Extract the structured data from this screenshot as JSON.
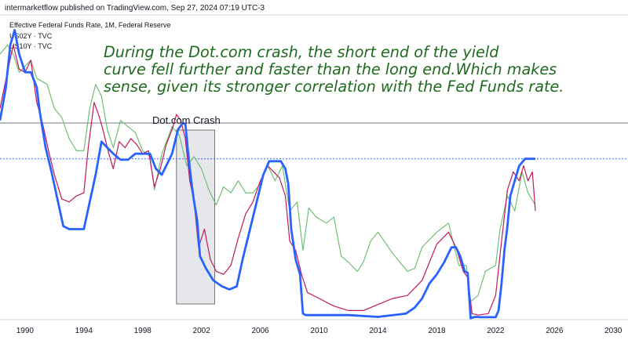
{
  "header": "intermarketflow published on TradingView.com, Sep 27, 2024 07:19 UTC-3",
  "legend": [
    "Effective Federal Funds Rate, 1M, Federal Reserve",
    "US02Y · TVC",
    "US10Y · TVC"
  ],
  "annotation": [
    "During the Dot.com crash, the short end of the yield",
    "curve fell further and faster than the long end.Which makes",
    "sense, given its stronger correlation with the Fed Funds rate."
  ],
  "box_label": "Dot.com Crash",
  "colors": {
    "fed_funds": "#2962ff",
    "us02y": "#c2185b",
    "us10y": "#66bb6a",
    "box_fill": "#e6e7ea",
    "dotted": "#2962ff"
  },
  "chart_data": {
    "type": "line",
    "title": "",
    "xlabel": "",
    "ylabel": "",
    "xlim": [
      1988.3,
      2031.0
    ],
    "ylim": [
      0.0,
      10.1
    ],
    "x_ticks": [
      1990,
      1994,
      1998,
      2002,
      2006,
      2010,
      2014,
      2018,
      2022,
      2026,
      2030
    ],
    "grid": false,
    "shaded_region": {
      "label": "Dot.com Crash",
      "x_start": 2000.3,
      "x_end": 2002.9
    },
    "reference_lines": [
      {
        "type": "dotted",
        "y": 5.33
      }
    ],
    "series": [
      {
        "name": "Effective Federal Funds Rate, 1M, Federal Reserve",
        "x": [
          1988.3,
          1988.7,
          1989.0,
          1989.3,
          1989.6,
          1990.0,
          1990.4,
          1990.8,
          1991.0,
          1991.4,
          1991.8,
          1992.2,
          1992.6,
          1993.0,
          1993.5,
          1994.0,
          1994.4,
          1994.8,
          1995.2,
          1995.6,
          1996.0,
          1996.5,
          1997.0,
          1997.5,
          1998.0,
          1998.5,
          1998.9,
          1999.3,
          1999.7,
          2000.0,
          2000.4,
          2000.7,
          2000.9,
          2001.1,
          2001.3,
          2001.5,
          2001.7,
          2001.9,
          2002.3,
          2002.8,
          2003.4,
          2003.9,
          2004.4,
          2004.8,
          2005.3,
          2005.8,
          2006.2,
          2006.6,
          2007.0,
          2007.4,
          2007.7,
          2007.9,
          2008.1,
          2008.4,
          2008.7,
          2008.9,
          2009.1,
          2010.0,
          2012.0,
          2014.0,
          2015.9,
          2016.5,
          2017.0,
          2017.5,
          2018.0,
          2018.5,
          2019.0,
          2019.3,
          2019.6,
          2019.9,
          2020.1,
          2020.3,
          2020.6,
          2021.0,
          2021.5,
          2022.0,
          2022.2,
          2022.4,
          2022.6,
          2022.8,
          2023.0,
          2023.3,
          2023.6,
          2024.0,
          2024.4,
          2024.7
        ],
        "values": [
          6.6,
          7.7,
          9.1,
          9.6,
          8.8,
          8.2,
          8.2,
          7.7,
          6.9,
          5.7,
          4.9,
          4.0,
          3.1,
          3.0,
          3.0,
          3.0,
          3.9,
          4.8,
          5.9,
          5.7,
          5.5,
          5.3,
          5.3,
          5.5,
          5.5,
          5.5,
          5.0,
          4.8,
          5.2,
          5.5,
          6.3,
          6.5,
          6.5,
          5.5,
          4.6,
          3.9,
          3.3,
          2.1,
          1.7,
          1.3,
          1.1,
          1.0,
          1.1,
          2.0,
          3.0,
          4.0,
          4.8,
          5.25,
          5.25,
          5.25,
          5.0,
          4.5,
          3.0,
          2.0,
          1.5,
          0.2,
          0.15,
          0.15,
          0.15,
          0.09,
          0.2,
          0.4,
          0.7,
          1.2,
          1.5,
          1.9,
          2.4,
          2.4,
          2.1,
          1.6,
          1.55,
          0.05,
          0.09,
          0.08,
          0.08,
          0.08,
          0.3,
          1.2,
          2.3,
          3.1,
          4.1,
          4.6,
          5.1,
          5.33,
          5.33,
          5.33
        ]
      },
      {
        "name": "US02Y · TVC",
        "x": [
          1988.3,
          1988.8,
          1989.2,
          1989.6,
          1990.0,
          1990.4,
          1990.8,
          1991.2,
          1991.6,
          1992.0,
          1992.5,
          1993.0,
          1993.5,
          1994.0,
          1994.3,
          1994.7,
          1995.0,
          1995.3,
          1995.7,
          1996.0,
          1996.4,
          1996.8,
          1997.2,
          1997.6,
          1998.0,
          1998.4,
          1998.8,
          1999.2,
          1999.6,
          2000.0,
          2000.3,
          2000.6,
          2000.9,
          2001.2,
          2001.5,
          2001.8,
          2002.2,
          2002.6,
          2003.0,
          2003.5,
          2004.0,
          2004.5,
          2005.0,
          2005.5,
          2006.0,
          2006.5,
          2006.9,
          2007.3,
          2007.7,
          2008.0,
          2008.4,
          2008.8,
          2009.2,
          2010.0,
          2011.0,
          2012.0,
          2013.0,
          2014.0,
          2015.0,
          2016.0,
          2017.0,
          2018.0,
          2018.8,
          2019.3,
          2019.8,
          2020.1,
          2020.4,
          2020.8,
          2021.5,
          2022.0,
          2022.4,
          2022.8,
          2023.2,
          2023.6,
          2023.9,
          2024.2,
          2024.5,
          2024.7
        ],
        "values": [
          7.0,
          8.2,
          9.1,
          8.3,
          8.2,
          8.6,
          7.2,
          6.5,
          5.6,
          4.8,
          4.0,
          3.9,
          4.1,
          4.2,
          5.7,
          7.2,
          6.8,
          6.3,
          5.5,
          5.0,
          5.9,
          5.7,
          6.0,
          5.8,
          5.5,
          5.6,
          4.4,
          5.0,
          5.8,
          6.3,
          6.8,
          6.6,
          6.0,
          4.6,
          3.9,
          2.4,
          3.0,
          2.0,
          1.6,
          1.5,
          1.8,
          2.7,
          3.5,
          3.9,
          4.6,
          5.1,
          4.9,
          4.7,
          4.1,
          2.6,
          2.3,
          1.5,
          0.9,
          0.7,
          0.45,
          0.3,
          0.3,
          0.5,
          0.7,
          0.8,
          1.3,
          2.5,
          2.9,
          2.4,
          1.6,
          1.4,
          0.2,
          0.15,
          0.2,
          0.8,
          2.6,
          4.3,
          4.9,
          4.6,
          5.1,
          4.6,
          4.9,
          3.6
        ]
      },
      {
        "name": "US10Y · TVC",
        "x": [
          1988.3,
          1988.8,
          1989.2,
          1989.6,
          1990.0,
          1990.4,
          1990.8,
          1991.5,
          1992.0,
          1992.5,
          1993.0,
          1993.5,
          1994.0,
          1994.4,
          1994.8,
          1995.2,
          1995.6,
          1996.0,
          1996.5,
          1997.0,
          1997.5,
          1998.0,
          1998.5,
          1998.8,
          1999.3,
          1999.7,
          2000.0,
          2000.5,
          2001.0,
          2001.5,
          2002.0,
          2002.5,
          2003.0,
          2003.5,
          2004.0,
          2004.5,
          2005.0,
          2005.5,
          2006.0,
          2006.5,
          2007.0,
          2007.5,
          2008.0,
          2008.5,
          2008.9,
          2009.3,
          2009.8,
          2010.5,
          2011.0,
          2011.5,
          2012.0,
          2012.6,
          2013.0,
          2013.5,
          2014.0,
          2015.0,
          2016.0,
          2016.5,
          2017.0,
          2018.0,
          2018.8,
          2019.5,
          2020.0,
          2020.3,
          2020.8,
          2021.3,
          2022.0,
          2022.3,
          2022.8,
          2023.3,
          2023.8,
          2024.2,
          2024.7
        ],
        "values": [
          8.8,
          9.1,
          8.8,
          8.2,
          8.4,
          8.6,
          8.0,
          7.8,
          7.0,
          6.7,
          6.0,
          5.6,
          5.6,
          7.0,
          7.8,
          7.4,
          6.3,
          5.7,
          6.6,
          6.4,
          6.2,
          5.6,
          5.4,
          4.3,
          5.5,
          6.0,
          6.4,
          6.1,
          5.1,
          5.4,
          5.0,
          4.3,
          3.8,
          4.4,
          4.2,
          4.6,
          4.2,
          4.2,
          4.5,
          5.1,
          4.6,
          5.1,
          3.6,
          3.9,
          2.3,
          3.7,
          3.4,
          3.2,
          3.4,
          2.1,
          1.9,
          1.6,
          1.9,
          2.6,
          2.9,
          2.2,
          1.6,
          1.7,
          2.4,
          2.9,
          3.2,
          1.8,
          1.8,
          0.6,
          0.8,
          1.6,
          1.8,
          3.0,
          4.1,
          3.6,
          4.9,
          4.2,
          3.8
        ]
      }
    ]
  }
}
